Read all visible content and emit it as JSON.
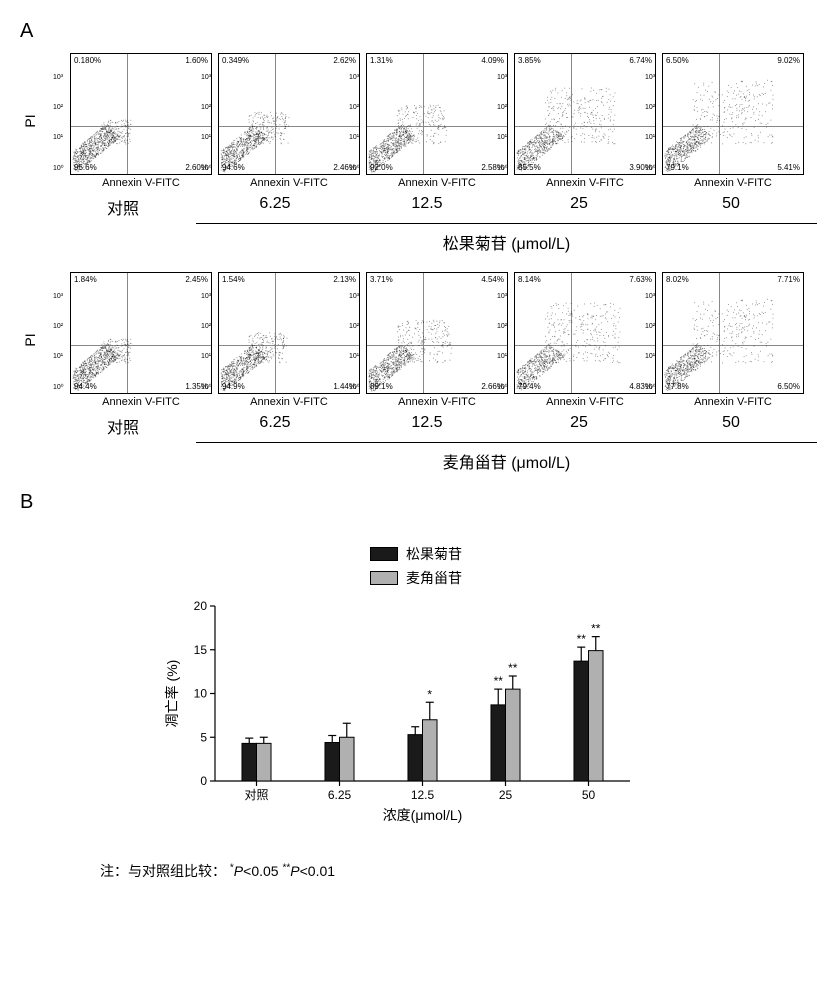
{
  "panelA_label": "A",
  "panelB_label": "B",
  "y_axis_label_pi": "PI",
  "x_axis_label": "Annexin V-FITC",
  "control_label": "对照",
  "doses": [
    "6.25",
    "12.5",
    "25",
    "50"
  ],
  "compound1_name": "松果菊苷 (μmol/L)",
  "compound2_name": "麦角甾苷 (μmol/L)",
  "compound1_short": "松果菊苷",
  "compound2_short": "麦角甾苷",
  "scatter_ticks_y": [
    "10⁰",
    "10¹",
    "10²",
    "10³"
  ],
  "scatter_ticks_x": [
    "10⁰",
    "10¹",
    "10²",
    "10³",
    ""
  ],
  "panelA_row1": [
    {
      "ul": "0.180%",
      "ur": "1.60%",
      "ll": "95.6%",
      "lr": "2.60%"
    },
    {
      "ul": "0.349%",
      "ur": "2.62%",
      "ll": "94.6%",
      "lr": "2.46%"
    },
    {
      "ul": "1.31%",
      "ur": "4.09%",
      "ll": "92.0%",
      "lr": "2.58%"
    },
    {
      "ul": "3.85%",
      "ur": "6.74%",
      "ll": "85.5%",
      "lr": "3.90%"
    },
    {
      "ul": "6.50%",
      "ur": "9.02%",
      "ll": "79.1%",
      "lr": "5.41%"
    }
  ],
  "panelA_row2": [
    {
      "ul": "1.84%",
      "ur": "2.45%",
      "ll": "94.4%",
      "lr": "1.35%"
    },
    {
      "ul": "1.54%",
      "ur": "2.13%",
      "ll": "94.9%",
      "lr": "1.44%"
    },
    {
      "ul": "3.71%",
      "ur": "4.54%",
      "ll": "89.1%",
      "lr": "2.66%"
    },
    {
      "ul": "8.14%",
      "ur": "7.63%",
      "ll": "79.4%",
      "lr": "4.83%"
    },
    {
      "ul": "8.02%",
      "ur": "7.71%",
      "ll": "77.8%",
      "lr": "6.50%"
    }
  ],
  "scatter_style": {
    "row1_density_shift": [
      0,
      0.1,
      0.2,
      0.4,
      0.5
    ],
    "row2_density_shift": [
      0,
      0.08,
      0.25,
      0.45,
      0.5
    ]
  },
  "bar_chart": {
    "type": "grouped_bar",
    "ylabel": "凋亡率 (%)",
    "xlabel": "浓度(μmol/L)",
    "categories": [
      "对照",
      "6.25",
      "12.5",
      "25",
      "50"
    ],
    "series": [
      {
        "name": "松果菊苷",
        "color": "#1a1a1a",
        "values": [
          4.3,
          4.4,
          5.3,
          8.7,
          13.7
        ],
        "errors": [
          0.6,
          0.8,
          0.9,
          1.8,
          1.6
        ],
        "sig": [
          "",
          "",
          "",
          "**",
          "**"
        ]
      },
      {
        "name": "麦角甾苷",
        "color": "#b0b0b0",
        "values": [
          4.3,
          5.0,
          7.0,
          10.5,
          14.9
        ],
        "errors": [
          0.7,
          1.6,
          2.0,
          1.5,
          1.6
        ],
        "sig": [
          "",
          "",
          "*",
          "**",
          "**"
        ]
      }
    ],
    "ylim": [
      0,
      20
    ],
    "yticks": [
      0,
      5,
      10,
      15,
      20
    ],
    "bar_width": 0.35,
    "border_color": "#000000",
    "background_color": "#ffffff",
    "label_fontsize": 14,
    "tick_fontsize": 12
  },
  "footnote_prefix": "注：与对照组比较：",
  "footnote_sig1_symbol": "*",
  "footnote_sig1_text": "P<0.05",
  "footnote_sig2_symbol": "**",
  "footnote_sig2_text": "P<0.01"
}
